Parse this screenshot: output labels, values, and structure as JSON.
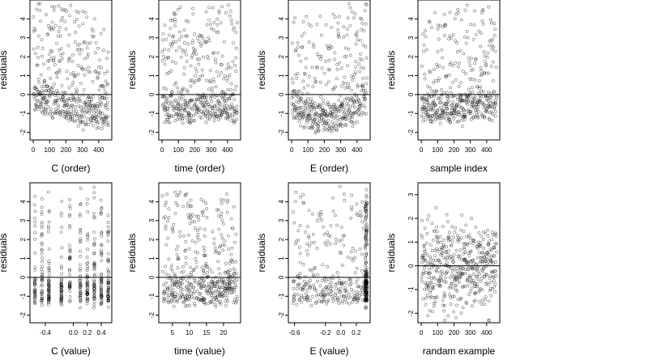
{
  "figure": {
    "background": "#ffffff",
    "point_color": "#000000",
    "grid": false,
    "legend": "none"
  },
  "chart_data": [
    {
      "type": "scatter",
      "xlabel": "C (order)",
      "ylabel": "residuals",
      "xlim": [
        -20,
        480
      ],
      "ylim": [
        -2.4,
        5.0
      ],
      "xticks": [
        0,
        100,
        200,
        300,
        400
      ],
      "xticklabels": [
        "0",
        "100",
        "200",
        "300",
        "400"
      ],
      "yticks": [
        -2,
        -1,
        0,
        1,
        2,
        3,
        4
      ],
      "yticklabels": [
        "-2",
        "-1",
        "0",
        "1",
        "2",
        "3",
        "4"
      ],
      "hline": 0,
      "points": {
        "n": 460,
        "x_kind": "index",
        "x_range": [
          1,
          460
        ],
        "y_pattern": "decreasing_trend",
        "y_range": [
          -2.2,
          4.8
        ]
      }
    },
    {
      "type": "scatter",
      "xlabel": "time (order)",
      "ylabel": "residuals",
      "xlim": [
        -20,
        480
      ],
      "ylim": [
        -2.4,
        5.0
      ],
      "xticks": [
        0,
        100,
        200,
        300,
        400
      ],
      "xticklabels": [
        "0",
        "100",
        "200",
        "300",
        "400"
      ],
      "yticks": [
        -2,
        -1,
        0,
        1,
        2,
        3,
        4
      ],
      "yticklabels": [
        "-2",
        "-1",
        "0",
        "1",
        "2",
        "3",
        "4"
      ],
      "hline": 0,
      "points": {
        "n": 460,
        "x_kind": "index",
        "x_range": [
          1,
          460
        ],
        "y_pattern": "uniform_skewed",
        "y_range": [
          -2.2,
          4.8
        ]
      }
    },
    {
      "type": "scatter",
      "xlabel": "E (order)",
      "ylabel": "residuals",
      "xlim": [
        -20,
        480
      ],
      "ylim": [
        -2.4,
        5.0
      ],
      "xticks": [
        0,
        100,
        200,
        300,
        400
      ],
      "xticklabels": [
        "0",
        "100",
        "200",
        "300",
        "400"
      ],
      "yticks": [
        -2,
        -1,
        0,
        1,
        2,
        3,
        4
      ],
      "yticklabels": [
        "-2",
        "-1",
        "0",
        "1",
        "2",
        "3",
        "4"
      ],
      "hline": 0,
      "points": {
        "n": 460,
        "x_kind": "index",
        "x_range": [
          1,
          460
        ],
        "y_pattern": "u_shape",
        "y_range": [
          -2.2,
          4.8
        ]
      }
    },
    {
      "type": "scatter",
      "xlabel": "sample index",
      "ylabel": "residuals",
      "xlim": [
        -20,
        480
      ],
      "ylim": [
        -2.4,
        5.0
      ],
      "xticks": [
        0,
        100,
        200,
        300,
        400
      ],
      "xticklabels": [
        "0",
        "100",
        "200",
        "300",
        "400"
      ],
      "yticks": [
        -2,
        -1,
        0,
        1,
        2,
        3,
        4
      ],
      "yticklabels": [
        "-2",
        "-1",
        "0",
        "1",
        "2",
        "3",
        "4"
      ],
      "hline": 0,
      "points": {
        "n": 460,
        "x_kind": "index",
        "x_range": [
          1,
          460
        ],
        "y_pattern": "uniform_skewed",
        "y_range": [
          -2.2,
          4.8
        ]
      }
    },
    {
      "type": "scatter",
      "xlabel": "C (value)",
      "ylabel": "residuals",
      "xlim": [
        -0.62,
        0.55
      ],
      "ylim": [
        -2.4,
        5.0
      ],
      "xticks": [
        -0.4,
        0.0,
        0.2,
        0.4
      ],
      "xticklabels": [
        "-0.4",
        "0.0",
        "0.2",
        "0.4"
      ],
      "yticks": [
        -2,
        -1,
        0,
        1,
        2,
        3,
        4
      ],
      "yticklabels": [
        "-2",
        "-1",
        "0",
        "1",
        "2",
        "3",
        "4"
      ],
      "hline": 0,
      "points": {
        "n": 460,
        "x_kind": "discrete",
        "x_levels": [
          -0.55,
          -0.45,
          -0.35,
          -0.17,
          -0.05,
          0.1,
          0.2,
          0.3,
          0.4,
          0.5
        ],
        "y_pattern": "skewed",
        "y_range": [
          -2.2,
          4.8
        ]
      }
    },
    {
      "type": "scatter",
      "xlabel": "time (value)",
      "ylabel": "residuals",
      "xlim": [
        1,
        25
      ],
      "ylim": [
        -2.4,
        5.0
      ],
      "xticks": [
        5,
        10,
        15,
        20
      ],
      "xticklabels": [
        "5",
        "10",
        "15",
        "20"
      ],
      "yticks": [
        -2,
        -1,
        0,
        1,
        2,
        3,
        4
      ],
      "yticklabels": [
        "-2",
        "-1",
        "0",
        "1",
        "2",
        "3",
        "4"
      ],
      "hline": 0,
      "points": {
        "n": 460,
        "x_kind": "continuous",
        "x_range": [
          2,
          24
        ],
        "y_pattern": "skewed",
        "y_range": [
          -2.2,
          4.8
        ]
      }
    },
    {
      "type": "scatter",
      "xlabel": "E (value)",
      "ylabel": "residuals",
      "xlim": [
        -0.68,
        0.38
      ],
      "ylim": [
        -2.4,
        5.0
      ],
      "xticks": [
        -0.6,
        -0.2,
        0.0,
        0.2
      ],
      "xticklabels": [
        "-0.6",
        "-0.2",
        "0.0",
        "0.2"
      ],
      "yticks": [
        -2,
        -1,
        0,
        1,
        2,
        3,
        4
      ],
      "yticklabels": [
        "-2",
        "-1",
        "0",
        "1",
        "2",
        "3",
        "4"
      ],
      "hline": 0,
      "points": {
        "n": 460,
        "x_kind": "clustered_right",
        "x_range": [
          -0.62,
          0.34
        ],
        "y_pattern": "skewed",
        "y_range": [
          -2.2,
          4.8
        ]
      }
    },
    {
      "type": "scatter",
      "xlabel": "randam example",
      "ylabel": "residuals",
      "xlim": [
        -20,
        480
      ],
      "ylim": [
        -2.4,
        3.5
      ],
      "xticks": [
        0,
        100,
        200,
        300,
        400
      ],
      "xticklabels": [
        "0",
        "100",
        "200",
        "300",
        "400"
      ],
      "yticks": [
        -2,
        -1,
        0,
        1,
        2,
        3
      ],
      "yticklabels": [
        "-2",
        "-1",
        "0",
        "1",
        "2",
        "3"
      ],
      "hline": 0,
      "points": {
        "n": 460,
        "x_kind": "index",
        "x_range": [
          1,
          460
        ],
        "y_pattern": "normal",
        "y_range": [
          -2.3,
          3.2
        ]
      }
    }
  ]
}
